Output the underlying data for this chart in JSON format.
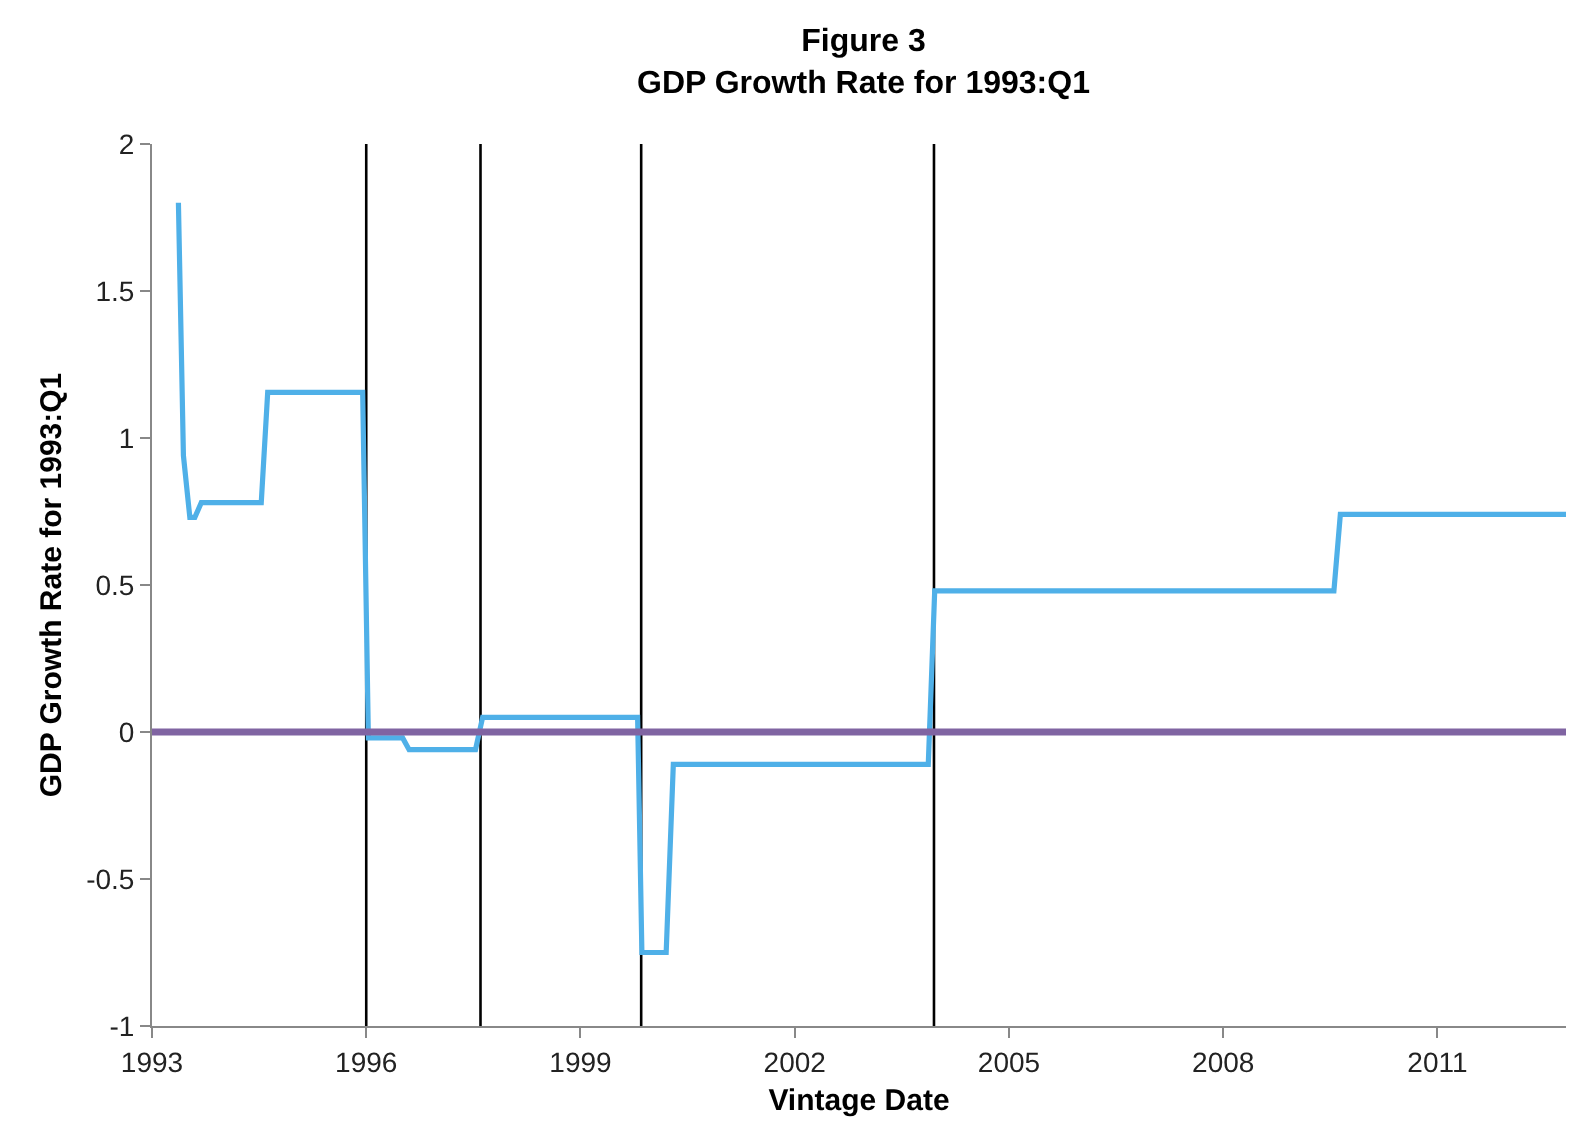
{
  "chart_data": {
    "type": "line",
    "title": "Figure 3",
    "subtitle": "GDP Growth Rate for 1993:Q1",
    "xlabel": "Vintage Date",
    "ylabel": "GDP Growth Rate for 1993:Q1",
    "x": [
      1993.37,
      1993.44,
      1993.53,
      1993.6,
      1993.69,
      1994.53,
      1994.62,
      1995.95,
      1996.03,
      1996.51,
      1996.6,
      1997.53,
      1997.63,
      1999.8,
      1999.86,
      2000.2,
      2000.3,
      2003.87,
      2003.96,
      2009.55,
      2009.64,
      2012.8
    ],
    "series": [
      {
        "color": "#4fb0e8",
        "values": [
          1.8,
          0.94,
          0.73,
          0.73,
          0.78,
          0.78,
          1.155,
          1.155,
          -0.02,
          -0.02,
          -0.06,
          -0.06,
          0.05,
          0.05,
          -0.75,
          -0.75,
          -0.11,
          -0.11,
          0.48,
          0.48,
          0.74,
          0.74
        ]
      }
    ],
    "xlim": [
      1993,
      2012.8
    ],
    "xticks": [
      1993,
      1996,
      1999,
      2002,
      2005,
      2008,
      2011
    ],
    "ylim": [
      -1,
      2
    ],
    "yticks": [
      -1,
      -0.5,
      0,
      0.5,
      1,
      1.5,
      2
    ],
    "ref_lines": [
      {
        "axis": "y",
        "value": 0,
        "color": "#8064a2"
      },
      {
        "axis": "x",
        "value": 1996.0,
        "color": "#000000"
      },
      {
        "axis": "x",
        "value": 1997.6,
        "color": "#000000"
      },
      {
        "axis": "x",
        "value": 1999.85,
        "color": "#000000"
      },
      {
        "axis": "x",
        "value": 2003.95,
        "color": "#000000"
      }
    ],
    "grid": false,
    "marker": "none",
    "line_style": "solid"
  }
}
